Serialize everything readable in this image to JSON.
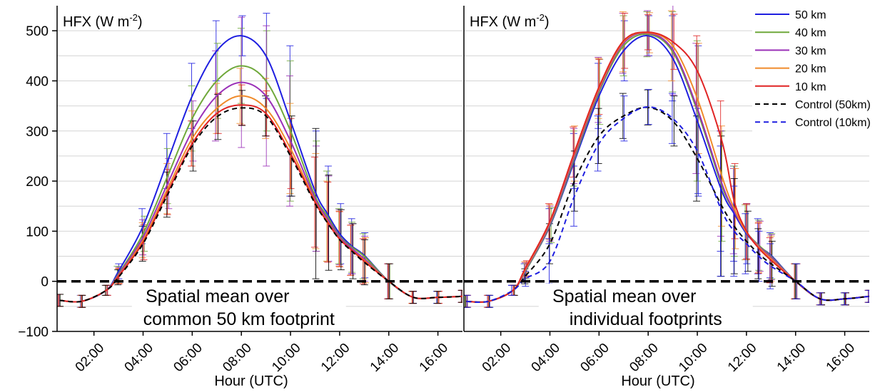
{
  "chart_data": {
    "type": "line",
    "y_axis": {
      "ylim": [
        -100,
        550
      ],
      "ticks": [
        -100,
        0,
        100,
        200,
        300,
        400,
        500
      ],
      "tick_labels": [
        "−100",
        "0",
        "100",
        "200",
        "300",
        "400",
        "500"
      ]
    },
    "x_axis": {
      "xlim": [
        0.5,
        17.0
      ],
      "ticks": [
        2,
        4,
        6,
        8,
        10,
        12,
        14,
        16
      ],
      "tick_labels": [
        "02:00",
        "04:00",
        "06:00",
        "08:00",
        "10:00",
        "12:00",
        "14:00",
        "16:00"
      ],
      "xlabel": "Hour (UTC)"
    },
    "grid": "horizontal",
    "zero_line": "dashed black at y = 0",
    "legend": {
      "position": "top-right of right panel",
      "entries": [
        {
          "name": "50 km",
          "color": "#1f1fe0",
          "style": "solid"
        },
        {
          "name": "40 km",
          "color": "#6fa83a",
          "style": "solid"
        },
        {
          "name": "30 km",
          "color": "#9a30b8",
          "style": "solid"
        },
        {
          "name": "20 km",
          "color": "#f08a2a",
          "style": "solid"
        },
        {
          "name": "10 km",
          "color": "#e02424",
          "style": "solid"
        },
        {
          "name": "Control (50km)",
          "color": "#000000",
          "style": "dashed"
        },
        {
          "name": "Control (10km)",
          "color": "#1f1fe0",
          "style": "dashed"
        }
      ]
    },
    "panels": [
      {
        "title": "HFX (W m",
        "title_sup": "-2",
        "title_end": ")",
        "annotation": [
          "Spatial mean over",
          "common 50 km footprint"
        ],
        "series": [
          {
            "name": "50 km",
            "color": "#1f1fe0",
            "dash": false,
            "x": [
              0.6,
              1.5,
              2.5,
              3.0,
              4.0,
              5.0,
              6.0,
              7.0,
              8.0,
              9.0,
              10.0,
              11.0,
              11.5,
              12.0,
              12.5,
              13.0,
              14.0,
              15.0,
              16.0,
              17.0
            ],
            "y": [
              -38,
              -40,
              -18,
              20,
              110,
              240,
              370,
              460,
              490,
              450,
              320,
              180,
              135,
              95,
              70,
              52,
              0,
              -32,
              -32,
              -30
            ],
            "err": [
              12,
              12,
              10,
              15,
              35,
              55,
              65,
              60,
              40,
              85,
              150,
              120,
              95,
              60,
              55,
              45,
              35,
              12,
              12,
              12
            ]
          },
          {
            "name": "40 km",
            "color": "#6fa83a",
            "dash": false,
            "x": [
              0.6,
              1.5,
              2.5,
              3.0,
              4.0,
              5.0,
              6.0,
              7.0,
              8.0,
              9.0,
              10.0,
              11.0,
              11.5,
              12.0,
              12.5,
              13.0,
              14.0,
              15.0,
              16.0,
              17.0
            ],
            "y": [
              -38,
              -40,
              -18,
              15,
              95,
              210,
              325,
              400,
              430,
              400,
              300,
              170,
              130,
              90,
              68,
              50,
              0,
              -32,
              -32,
              -30
            ],
            "err": [
              12,
              12,
              10,
              15,
              35,
              55,
              65,
              75,
              75,
              100,
              140,
              110,
              90,
              55,
              50,
              45,
              35,
              12,
              12,
              12
            ]
          },
          {
            "name": "30 km",
            "color": "#9a30b8",
            "dash": false,
            "x": [
              0.6,
              1.5,
              2.5,
              3.0,
              4.0,
              5.0,
              6.0,
              7.0,
              8.0,
              9.0,
              10.0,
              11.0,
              11.5,
              12.0,
              12.5,
              13.0,
              14.0,
              15.0,
              16.0,
              17.0
            ],
            "y": [
              -38,
              -40,
              -18,
              13,
              88,
              195,
              300,
              370,
              397,
              370,
              280,
              165,
              125,
              88,
              65,
              45,
              0,
              -32,
              -32,
              -30
            ],
            "err": [
              12,
              12,
              10,
              15,
              35,
              50,
              60,
              90,
              130,
              140,
              130,
              105,
              85,
              55,
              50,
              45,
              35,
              12,
              12,
              12
            ]
          },
          {
            "name": "20 km",
            "color": "#f08a2a",
            "dash": false,
            "x": [
              0.6,
              1.5,
              2.5,
              3.0,
              4.0,
              5.0,
              6.0,
              7.0,
              8.0,
              9.0,
              10.0,
              11.0,
              11.5,
              12.0,
              12.5,
              13.0,
              14.0,
              15.0,
              16.0,
              17.0
            ],
            "y": [
              -38,
              -40,
              -18,
              11,
              82,
              185,
              285,
              345,
              370,
              345,
              265,
              160,
              120,
              85,
              62,
              42,
              0,
              -32,
              -32,
              -30
            ],
            "err": [
              12,
              12,
              10,
              15,
              35,
              50,
              55,
              50,
              55,
              60,
              90,
              95,
              80,
              55,
              50,
              45,
              35,
              12,
              12,
              12
            ]
          },
          {
            "name": "10 km",
            "color": "#e02424",
            "dash": false,
            "x": [
              0.6,
              1.5,
              2.5,
              3.0,
              4.0,
              5.0,
              6.0,
              7.0,
              8.0,
              9.0,
              10.0,
              11.0,
              11.5,
              12.0,
              12.5,
              13.0,
              14.0,
              15.0,
              16.0,
              17.0
            ],
            "y": [
              -38,
              -40,
              -18,
              10,
              78,
              178,
              275,
              335,
              352,
              335,
              255,
              158,
              118,
              84,
              62,
              40,
              0,
              -32,
              -32,
              -30
            ],
            "err": [
              12,
              12,
              10,
              15,
              35,
              45,
              45,
              40,
              40,
              45,
              70,
              90,
              80,
              55,
              50,
              45,
              35,
              12,
              12,
              12
            ]
          },
          {
            "name": "Control (50km)",
            "color": "#000000",
            "dash": true,
            "x": [
              0.6,
              1.5,
              2.5,
              3.0,
              4.0,
              5.0,
              6.0,
              7.0,
              8.0,
              9.0,
              10.0,
              11.0,
              11.5,
              12.0,
              12.5,
              13.0,
              14.0,
              15.0,
              16.0,
              17.0
            ],
            "y": [
              -38,
              -40,
              -18,
              8,
              75,
              173,
              270,
              328,
              346,
              330,
              250,
              155,
              117,
              83,
              60,
              38,
              0,
              -32,
              -32,
              -30
            ],
            "err": [
              12,
              12,
              10,
              15,
              35,
              45,
              50,
              45,
              35,
              40,
              80,
              150,
              95,
              60,
              55,
              45,
              35,
              12,
              12,
              12
            ]
          }
        ]
      },
      {
        "title": "HFX (W m",
        "title_sup": "-2",
        "title_end": ")",
        "annotation": [
          "Spatial mean over",
          "individual footprints"
        ],
        "series": [
          {
            "name": "50 km",
            "color": "#1f1fe0",
            "dash": false,
            "x": [
              0.6,
              1.5,
              2.5,
              3.0,
              4.0,
              5.0,
              6.0,
              7.0,
              8.0,
              9.0,
              10.0,
              11.0,
              11.5,
              12.0,
              12.5,
              13.0,
              14.0,
              15.0,
              16.0,
              17.0
            ],
            "y": [
              -40,
              -40,
              -18,
              20,
              110,
              240,
              370,
              460,
              490,
              445,
              320,
              180,
              135,
              95,
              70,
              52,
              0,
              -35,
              -35,
              -30
            ],
            "err": [
              12,
              12,
              10,
              15,
              35,
              55,
              65,
              60,
              40,
              85,
              150,
              120,
              95,
              60,
              55,
              45,
              35,
              12,
              12,
              12
            ]
          },
          {
            "name": "40 km",
            "color": "#6fa83a",
            "dash": false,
            "x": [
              0.6,
              1.5,
              2.5,
              3.0,
              4.0,
              5.0,
              6.0,
              7.0,
              8.0,
              9.0,
              10.0,
              11.0,
              11.5,
              12.0,
              12.5,
              13.0,
              14.0,
              15.0,
              16.0,
              17.0
            ],
            "y": [
              -40,
              -40,
              -18,
              20,
              112,
              245,
              378,
              470,
              493,
              458,
              340,
              190,
              140,
              98,
              72,
              50,
              0,
              -35,
              -35,
              -30
            ],
            "err": [
              12,
              12,
              10,
              15,
              35,
              55,
              65,
              60,
              45,
              80,
              140,
              110,
              90,
              55,
              50,
              45,
              35,
              12,
              12,
              12
            ]
          },
          {
            "name": "30 km",
            "color": "#9a30b8",
            "dash": false,
            "x": [
              0.6,
              1.5,
              2.5,
              3.0,
              4.0,
              5.0,
              6.0,
              7.0,
              8.0,
              9.0,
              10.0,
              11.0,
              11.5,
              12.0,
              12.5,
              13.0,
              14.0,
              15.0,
              16.0,
              17.0
            ],
            "y": [
              -40,
              -40,
              -18,
              22,
              115,
              250,
              382,
              475,
              495,
              462,
              345,
              195,
              140,
              98,
              70,
              48,
              0,
              -35,
              -35,
              -30
            ],
            "err": [
              12,
              12,
              10,
              15,
              35,
              55,
              65,
              60,
              45,
              90,
              130,
              105,
              85,
              55,
              50,
              45,
              35,
              12,
              12,
              12
            ]
          },
          {
            "name": "20 km",
            "color": "#f08a2a",
            "dash": false,
            "x": [
              0.6,
              1.5,
              2.5,
              3.0,
              4.0,
              5.0,
              6.0,
              7.0,
              8.0,
              9.0,
              10.0,
              11.0,
              11.5,
              12.0,
              12.5,
              13.0,
              14.0,
              15.0,
              16.0,
              17.0
            ],
            "y": [
              -40,
              -40,
              -18,
              24,
              118,
              255,
              385,
              478,
              496,
              470,
              365,
              210,
              145,
              98,
              68,
              45,
              0,
              -35,
              -35,
              -30
            ],
            "err": [
              12,
              12,
              10,
              15,
              35,
              55,
              60,
              60,
              40,
              70,
              110,
              100,
              80,
              55,
              50,
              45,
              35,
              12,
              12,
              12
            ]
          },
          {
            "name": "10 km",
            "color": "#e02424",
            "dash": false,
            "x": [
              0.6,
              1.5,
              2.5,
              3.0,
              4.0,
              5.0,
              6.0,
              7.0,
              8.0,
              9.0,
              10.0,
              11.0,
              11.5,
              12.0,
              12.5,
              13.0,
              14.0,
              15.0,
              16.0,
              17.0
            ],
            "y": [
              -40,
              -40,
              -18,
              26,
              120,
              258,
              388,
              480,
              497,
              478,
              420,
              280,
              160,
              100,
              66,
              42,
              0,
              -35,
              -35,
              -30
            ],
            "err": [
              12,
              12,
              10,
              15,
              35,
              50,
              55,
              55,
              35,
              55,
              70,
              80,
              75,
              55,
              50,
              45,
              35,
              12,
              12,
              12
            ]
          },
          {
            "name": "Control (50km)",
            "color": "#000000",
            "dash": true,
            "x": [
              0.6,
              1.5,
              2.5,
              3.0,
              4.0,
              5.0,
              6.0,
              7.0,
              8.0,
              9.0,
              10.0,
              11.0,
              11.5,
              12.0,
              12.5,
              13.0,
              14.0,
              15.0,
              16.0,
              17.0
            ],
            "y": [
              -40,
              -40,
              -18,
              10,
              75,
              200,
              290,
              330,
              347,
              320,
              245,
              150,
              110,
              80,
              55,
              35,
              0,
              -35,
              -35,
              -30
            ],
            "err": [
              12,
              12,
              10,
              15,
              40,
              60,
              55,
              45,
              35,
              50,
              85,
              140,
              95,
              60,
              50,
              45,
              35,
              12,
              12,
              12
            ]
          },
          {
            "name": "Control (10km)",
            "color": "#1f1fe0",
            "dash": true,
            "x": [
              0.6,
              1.5,
              2.5,
              3.0,
              4.0,
              5.0,
              6.0,
              7.0,
              8.0,
              9.0,
              10.0,
              11.0,
              11.5,
              12.0,
              12.5,
              13.0,
              14.0,
              15.0,
              16.0,
              17.0
            ],
            "y": [
              -40,
              -40,
              -18,
              5,
              40,
              170,
              275,
              325,
              348,
              325,
              260,
              140,
              100,
              75,
              50,
              30,
              0,
              -35,
              -35,
              -30
            ],
            "err": [
              12,
              12,
              10,
              15,
              45,
              60,
              55,
              45,
              35,
              50,
              85,
              130,
              90,
              60,
              50,
              45,
              35,
              12,
              12,
              12
            ]
          }
        ]
      }
    ]
  }
}
